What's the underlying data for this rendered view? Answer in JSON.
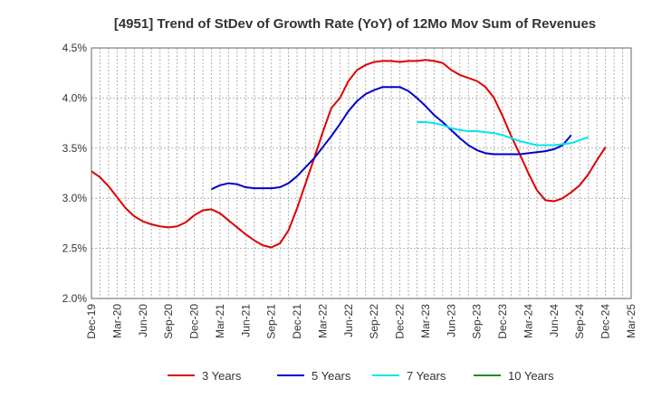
{
  "chart_data": {
    "type": "line",
    "title": "[4951]  Trend of StDev of Growth Rate (YoY) of 12Mo Mov Sum of Revenues",
    "xlabel": "",
    "ylabel": "",
    "ylim": [
      2.0,
      4.5
    ],
    "y_ticks": [
      "2.0%",
      "2.5%",
      "3.0%",
      "3.5%",
      "4.0%",
      "4.5%"
    ],
    "x_ticks": [
      "Dec-19",
      "Mar-20",
      "Jun-20",
      "Sep-20",
      "Dec-20",
      "Mar-21",
      "Jun-21",
      "Sep-21",
      "Dec-21",
      "Mar-22",
      "Jun-22",
      "Sep-22",
      "Dec-22",
      "Mar-23",
      "Jun-23",
      "Sep-23",
      "Dec-23",
      "Mar-24",
      "Jun-24",
      "Sep-24",
      "Dec-24",
      "Mar-25"
    ],
    "grid": true,
    "legend_position": "bottom",
    "series": [
      {
        "name": "3 Years",
        "color": "#dd0000",
        "start_index": 0,
        "values": [
          3.27,
          3.21,
          3.12,
          3.01,
          2.9,
          2.82,
          2.77,
          2.74,
          2.72,
          2.71,
          2.72,
          2.76,
          2.83,
          2.88,
          2.89,
          2.85,
          2.78,
          2.71,
          2.64,
          2.58,
          2.53,
          2.51,
          2.55,
          2.68,
          2.9,
          3.15,
          3.4,
          3.66,
          3.9,
          4.0,
          4.17,
          4.28,
          4.33,
          4.36,
          4.37,
          4.37,
          4.36,
          4.37,
          4.37,
          4.38,
          4.37,
          4.35,
          4.28,
          4.23,
          4.2,
          4.17,
          4.11,
          4.0,
          3.82,
          3.62,
          3.44,
          3.25,
          3.08,
          2.98,
          2.97,
          3.0,
          3.06,
          3.13,
          3.24,
          3.38,
          3.51
        ]
      },
      {
        "name": "5 Years",
        "color": "#0000cc",
        "start_index": 14,
        "values": [
          3.09,
          3.13,
          3.15,
          3.14,
          3.11,
          3.1,
          3.1,
          3.1,
          3.11,
          3.15,
          3.22,
          3.31,
          3.4,
          3.51,
          3.62,
          3.74,
          3.87,
          3.97,
          4.04,
          4.08,
          4.11,
          4.11,
          4.11,
          4.07,
          4.0,
          3.92,
          3.83,
          3.76,
          3.68,
          3.6,
          3.53,
          3.48,
          3.45,
          3.44,
          3.44,
          3.44,
          3.44,
          3.45,
          3.46,
          3.47,
          3.49,
          3.53,
          3.63
        ]
      },
      {
        "name": "7 Years",
        "color": "#00e5ee",
        "start_index": 38,
        "values": [
          3.76,
          3.76,
          3.75,
          3.73,
          3.7,
          3.68,
          3.67,
          3.67,
          3.66,
          3.65,
          3.63,
          3.6,
          3.57,
          3.55,
          3.53,
          3.53,
          3.53,
          3.54,
          3.55,
          3.58,
          3.61
        ]
      },
      {
        "name": "10 Years",
        "color": "#228B22",
        "start_index": 0,
        "values": []
      }
    ]
  }
}
